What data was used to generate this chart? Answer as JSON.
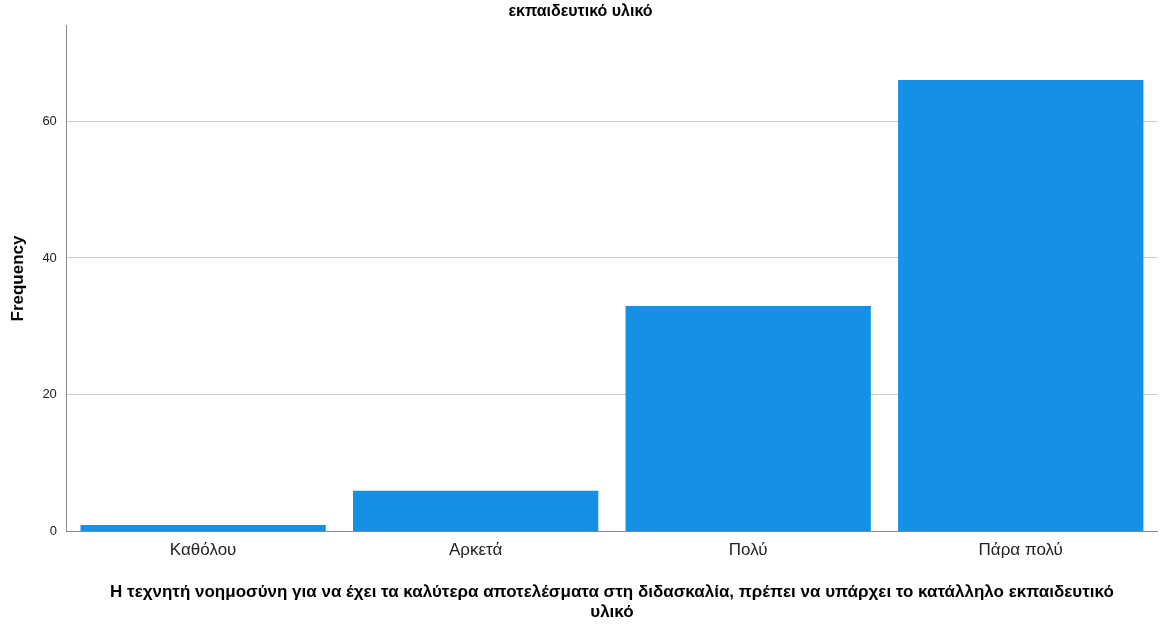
{
  "chart_data": {
    "type": "bar",
    "title": "εκπαιδευτικό υλικό",
    "xlabel": "Η τεχνητή νοημοσύνη για να έχει τα καλύτερα αποτελέσματα στη διδασκαλία, πρέπει να υπάρχει το κατάλληλο εκπαιδευτικό υλικό",
    "ylabel": "Frequency",
    "categories": [
      "Καθόλου",
      "Αρκετά",
      "Πολύ",
      "Πάρα πολύ"
    ],
    "values": [
      1,
      6,
      33,
      66
    ],
    "color": "#1491e6",
    "ylim": [
      0,
      74
    ],
    "yticks": [
      0,
      20,
      40,
      60
    ],
    "grid": "y",
    "legend": false
  }
}
